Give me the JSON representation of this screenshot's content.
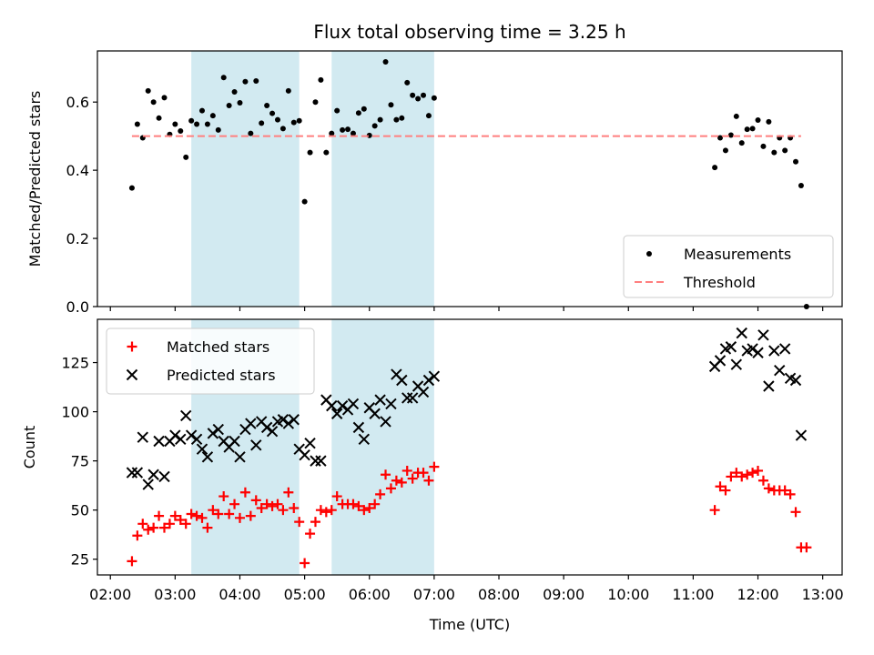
{
  "chart_data": {
    "title": "Flux total observing time = 3.25 h",
    "xlabel": "Time (UTC)",
    "x_ticks": [
      "02:00",
      "03:00",
      "04:00",
      "05:00",
      "06:00",
      "07:00",
      "08:00",
      "09:00",
      "10:00",
      "11:00",
      "12:00",
      "13:00"
    ],
    "x_range": [
      "01:48",
      "13:18"
    ],
    "colors": {
      "measurements": "#000000",
      "threshold": "#ff7f7f",
      "matched": "#ff0000",
      "predicted": "#000000",
      "shade": "#add8e6"
    },
    "shaded_intervals": [
      [
        "03:15",
        "04:55"
      ],
      [
        "05:25",
        "07:00"
      ]
    ],
    "panels": [
      {
        "type": "scatter",
        "ylabel": "Matched/Predicted stars",
        "ylim": [
          0,
          0.75
        ],
        "y_ticks": [
          "0.0",
          "0.2",
          "0.4",
          "0.6"
        ],
        "legend_position": "lower-right",
        "series": [
          {
            "name": "Measurements",
            "marker": "dot",
            "points": [
              [
                "02:20",
                0.348
              ],
              [
                "02:25",
                0.535
              ],
              [
                "02:30",
                0.495
              ],
              [
                "02:35",
                0.633
              ],
              [
                "02:40",
                0.6
              ],
              [
                "02:45",
                0.553
              ],
              [
                "02:50",
                0.613
              ],
              [
                "02:55",
                0.505
              ],
              [
                "03:00",
                0.535
              ],
              [
                "03:05",
                0.515
              ],
              [
                "03:10",
                0.438
              ],
              [
                "03:15",
                0.545
              ],
              [
                "03:20",
                0.535
              ],
              [
                "03:25",
                0.575
              ],
              [
                "03:30",
                0.535
              ],
              [
                "03:35",
                0.56
              ],
              [
                "03:40",
                0.518
              ],
              [
                "03:45",
                0.672
              ],
              [
                "03:50",
                0.59
              ],
              [
                "03:55",
                0.63
              ],
              [
                "04:00",
                0.598
              ],
              [
                "04:05",
                0.66
              ],
              [
                "04:10",
                0.508
              ],
              [
                "04:15",
                0.662
              ],
              [
                "04:20",
                0.538
              ],
              [
                "04:25",
                0.59
              ],
              [
                "04:30",
                0.567
              ],
              [
                "04:35",
                0.548
              ],
              [
                "04:40",
                0.522
              ],
              [
                "04:45",
                0.633
              ],
              [
                "04:50",
                0.54
              ],
              [
                "04:55",
                0.545
              ],
              [
                "05:00",
                0.308
              ],
              [
                "05:05",
                0.452
              ],
              [
                "05:10",
                0.6
              ],
              [
                "05:15",
                0.665
              ],
              [
                "05:20",
                0.452
              ],
              [
                "05:25",
                0.508
              ],
              [
                "05:30",
                0.575
              ],
              [
                "05:35",
                0.518
              ],
              [
                "05:40",
                0.52
              ],
              [
                "05:45",
                0.508
              ],
              [
                "05:50",
                0.568
              ],
              [
                "05:55",
                0.58
              ],
              [
                "06:00",
                0.502
              ],
              [
                "06:05",
                0.53
              ],
              [
                "06:10",
                0.548
              ],
              [
                "06:15",
                0.718
              ],
              [
                "06:20",
                0.592
              ],
              [
                "06:25",
                0.548
              ],
              [
                "06:30",
                0.553
              ],
              [
                "06:35",
                0.657
              ],
              [
                "06:40",
                0.62
              ],
              [
                "06:45",
                0.61
              ],
              [
                "06:50",
                0.62
              ],
              [
                "06:55",
                0.56
              ],
              [
                "07:00",
                0.612
              ],
              [
                "11:20",
                0.408
              ],
              [
                "11:25",
                0.495
              ],
              [
                "11:30",
                0.458
              ],
              [
                "11:35",
                0.503
              ],
              [
                "11:40",
                0.558
              ],
              [
                "11:45",
                0.48
              ],
              [
                "11:50",
                0.52
              ],
              [
                "11:55",
                0.522
              ],
              [
                "12:00",
                0.547
              ],
              [
                "12:05",
                0.47
              ],
              [
                "12:10",
                0.542
              ],
              [
                "12:15",
                0.452
              ],
              [
                "12:20",
                0.495
              ],
              [
                "12:25",
                0.458
              ],
              [
                "12:30",
                0.495
              ],
              [
                "12:35",
                0.425
              ],
              [
                "12:40",
                0.355
              ],
              [
                "12:45",
                0.0
              ]
            ]
          },
          {
            "name": "Threshold",
            "marker": "dashed-line",
            "points": [
              [
                "02:20",
                0.5
              ],
              [
                "12:40",
                0.5
              ]
            ]
          }
        ]
      },
      {
        "type": "scatter",
        "ylabel": "Count",
        "ylim": [
          17,
          147
        ],
        "y_ticks": [
          "25",
          "50",
          "75",
          "100",
          "125"
        ],
        "legend_position": "upper-left",
        "series": [
          {
            "name": "Matched stars",
            "marker": "plus",
            "points": [
              [
                "02:20",
                24
              ],
              [
                "02:25",
                37
              ],
              [
                "02:30",
                43
              ],
              [
                "02:35",
                40
              ],
              [
                "02:40",
                41
              ],
              [
                "02:45",
                47
              ],
              [
                "02:50",
                41
              ],
              [
                "02:55",
                43
              ],
              [
                "03:00",
                47
              ],
              [
                "03:05",
                45
              ],
              [
                "03:10",
                43
              ],
              [
                "03:15",
                48
              ],
              [
                "03:20",
                47
              ],
              [
                "03:25",
                46
              ],
              [
                "03:30",
                41
              ],
              [
                "03:35",
                50
              ],
              [
                "03:40",
                48
              ],
              [
                "03:45",
                57
              ],
              [
                "03:50",
                48
              ],
              [
                "03:55",
                53
              ],
              [
                "04:00",
                46
              ],
              [
                "04:05",
                59
              ],
              [
                "04:10",
                47
              ],
              [
                "04:15",
                55
              ],
              [
                "04:20",
                51
              ],
              [
                "04:25",
                53
              ],
              [
                "04:30",
                52
              ],
              [
                "04:35",
                53
              ],
              [
                "04:40",
                50
              ],
              [
                "04:45",
                59
              ],
              [
                "04:50",
                51
              ],
              [
                "04:55",
                44
              ],
              [
                "05:00",
                23
              ],
              [
                "05:05",
                38
              ],
              [
                "05:10",
                44
              ],
              [
                "05:15",
                50
              ],
              [
                "05:20",
                49
              ],
              [
                "05:25",
                50
              ],
              [
                "05:30",
                57
              ],
              [
                "05:35",
                53
              ],
              [
                "05:40",
                53
              ],
              [
                "05:45",
                53
              ],
              [
                "05:50",
                52
              ],
              [
                "05:55",
                50
              ],
              [
                "06:00",
                51
              ],
              [
                "06:05",
                53
              ],
              [
                "06:10",
                58
              ],
              [
                "06:15",
                68
              ],
              [
                "06:20",
                61
              ],
              [
                "06:25",
                65
              ],
              [
                "06:30",
                64
              ],
              [
                "06:35",
                70
              ],
              [
                "06:40",
                66
              ],
              [
                "06:45",
                69
              ],
              [
                "06:50",
                69
              ],
              [
                "06:55",
                65
              ],
              [
                "07:00",
                72
              ],
              [
                "11:20",
                50
              ],
              [
                "11:25",
                62
              ],
              [
                "11:30",
                60
              ],
              [
                "11:35",
                67
              ],
              [
                "11:40",
                69
              ],
              [
                "11:45",
                67
              ],
              [
                "11:50",
                68
              ],
              [
                "11:55",
                69
              ],
              [
                "12:00",
                70
              ],
              [
                "12:05",
                65
              ],
              [
                "12:10",
                61
              ],
              [
                "12:15",
                60
              ],
              [
                "12:20",
                60
              ],
              [
                "12:25",
                60
              ],
              [
                "12:30",
                58
              ],
              [
                "12:35",
                49
              ],
              [
                "12:40",
                31
              ],
              [
                "12:45",
                31
              ]
            ]
          },
          {
            "name": "Predicted stars",
            "marker": "cross",
            "points": [
              [
                "02:20",
                69
              ],
              [
                "02:25",
                69
              ],
              [
                "02:30",
                87
              ],
              [
                "02:35",
                63
              ],
              [
                "02:40",
                68
              ],
              [
                "02:45",
                85
              ],
              [
                "02:50",
                67
              ],
              [
                "02:55",
                85
              ],
              [
                "03:00",
                88
              ],
              [
                "03:05",
                86
              ],
              [
                "03:10",
                98
              ],
              [
                "03:15",
                88
              ],
              [
                "03:20",
                86
              ],
              [
                "03:25",
                81
              ],
              [
                "03:30",
                77
              ],
              [
                "03:35",
                89
              ],
              [
                "03:40",
                91
              ],
              [
                "03:45",
                85
              ],
              [
                "03:50",
                82
              ],
              [
                "03:55",
                85
              ],
              [
                "04:00",
                77
              ],
              [
                "04:05",
                91
              ],
              [
                "04:10",
                94
              ],
              [
                "04:15",
                83
              ],
              [
                "04:20",
                95
              ],
              [
                "04:25",
                92
              ],
              [
                "04:30",
                90
              ],
              [
                "04:35",
                95
              ],
              [
                "04:40",
                96
              ],
              [
                "04:45",
                94
              ],
              [
                "04:50",
                96
              ],
              [
                "04:55",
                81
              ],
              [
                "05:00",
                78
              ],
              [
                "05:05",
                84
              ],
              [
                "05:10",
                75
              ],
              [
                "05:15",
                75
              ],
              [
                "05:20",
                106
              ],
              [
                "05:25",
                103
              ],
              [
                "05:30",
                99
              ],
              [
                "05:35",
                103
              ],
              [
                "05:40",
                101
              ],
              [
                "05:45",
                104
              ],
              [
                "05:50",
                92
              ],
              [
                "05:55",
                86
              ],
              [
                "06:00",
                102
              ],
              [
                "06:05",
                99
              ],
              [
                "06:10",
                106
              ],
              [
                "06:15",
                95
              ],
              [
                "06:20",
                104
              ],
              [
                "06:25",
                119
              ],
              [
                "06:30",
                116
              ],
              [
                "06:35",
                107
              ],
              [
                "06:40",
                107
              ],
              [
                "06:45",
                113
              ],
              [
                "06:50",
                110
              ],
              [
                "06:55",
                116
              ],
              [
                "07:00",
                118
              ],
              [
                "11:20",
                123
              ],
              [
                "11:25",
                126
              ],
              [
                "11:30",
                132
              ],
              [
                "11:35",
                133
              ],
              [
                "11:40",
                124
              ],
              [
                "11:45",
                140
              ],
              [
                "11:50",
                131
              ],
              [
                "11:55",
                132
              ],
              [
                "12:00",
                130
              ],
              [
                "12:05",
                139
              ],
              [
                "12:10",
                113
              ],
              [
                "12:15",
                131
              ],
              [
                "12:20",
                121
              ],
              [
                "12:25",
                132
              ],
              [
                "12:30",
                117
              ],
              [
                "12:35",
                116
              ],
              [
                "12:40",
                88
              ]
            ]
          }
        ]
      }
    ]
  }
}
